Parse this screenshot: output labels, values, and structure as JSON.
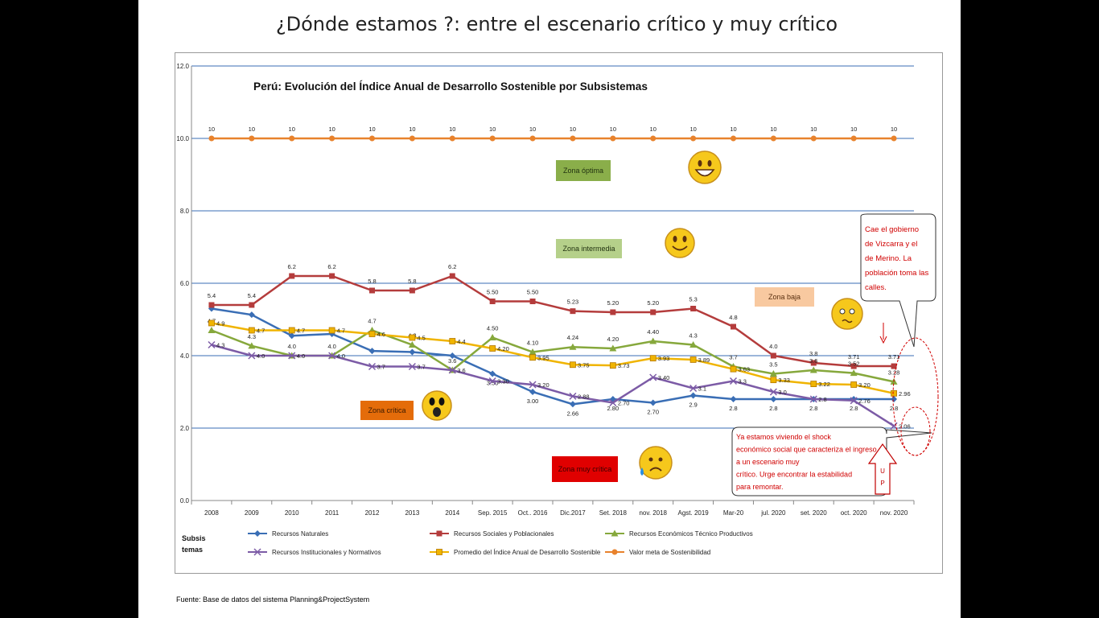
{
  "slide": {
    "title": "¿Dónde estamos ?: entre el escenario crítico y muy crítico",
    "source": "Fuente: Base de datos del sistema Planning&ProjectSystem"
  },
  "chart_data": {
    "type": "line",
    "title": "Perú: Evolución del  Índice Anual de Desarrollo Sostenible por Subsistemas",
    "ylim": [
      0,
      12
    ],
    "yticks": [
      "0.0",
      "2.0",
      "4.0",
      "6.0",
      "8.0",
      "10.0",
      "12.0"
    ],
    "grid": true,
    "legend_position": "bottom",
    "legend_label": "Subsis temas",
    "categories": [
      "2008",
      "2009",
      "2010",
      "2011",
      "2012",
      "2013",
      "2014",
      "Sep. 2015",
      "Oct.. 2016",
      "Dic.2017",
      "Set. 2018",
      "nov. 2018",
      "Agst. 2019",
      "Mar-20",
      "jul. 2020",
      "set. 2020",
      "oct. 2020",
      "nov. 2020"
    ],
    "series": [
      {
        "name": "Recursos Naturales",
        "color": "#3a6eb5",
        "marker": "diamond",
        "values": [
          5.3,
          5.13,
          4.55,
          4.6,
          4.13,
          4.1,
          4.0,
          3.5,
          3.0,
          2.66,
          2.8,
          2.7,
          2.9,
          2.8,
          2.8,
          2.8,
          2.8,
          2.8
        ],
        "labels": [
          "",
          "",
          "",
          "",
          "",
          "",
          "",
          "3.50",
          "3.00",
          "2.66",
          "2.80",
          "2.70",
          "2.9",
          "2.8",
          "2.8",
          "2.8",
          "2.8",
          "2.8"
        ]
      },
      {
        "name": "Recursos Sociales y Poblacionales",
        "color": "#b43c3c",
        "marker": "square",
        "values": [
          5.4,
          5.4,
          6.2,
          6.2,
          5.8,
          5.8,
          6.2,
          5.5,
          5.5,
          5.23,
          5.2,
          5.2,
          5.3,
          4.8,
          4.0,
          3.8,
          3.71,
          3.71
        ],
        "labels": [
          "5.4",
          "5.4",
          "6.2",
          "6.2",
          "5.8",
          "5.8",
          "6.2",
          "5.50",
          "5.50",
          "5.23",
          "5.20",
          "5.20",
          "5.3",
          "4.8",
          "4.0",
          "3.8",
          "3.71",
          "3.71"
        ]
      },
      {
        "name": "Recursos Económicos Técnico Productivos",
        "color": "#86a83c",
        "marker": "triangle",
        "values": [
          4.7,
          4.27,
          4.0,
          4.0,
          4.7,
          4.3,
          3.6,
          4.5,
          4.1,
          4.24,
          4.2,
          4.4,
          4.3,
          3.7,
          3.5,
          3.6,
          3.52,
          3.28
        ],
        "labels": [
          "4.7",
          "4.3",
          "4.0",
          "4.0",
          "4.7",
          "4.3",
          "3.6",
          "4.50",
          "4.10",
          "4.24",
          "4.20",
          "4.40",
          "4.3",
          "3.7",
          "3.5",
          "3.6",
          "3.52",
          "3.28"
        ]
      },
      {
        "name": "Recursos Institucionales y Normativos",
        "color": "#7c5ba6",
        "marker": "x",
        "values": [
          4.3,
          4.0,
          4.0,
          4.0,
          3.7,
          3.7,
          3.6,
          3.3,
          3.2,
          2.88,
          2.7,
          3.4,
          3.1,
          3.3,
          3.0,
          2.8,
          2.76,
          2.06
        ],
        "labels": [
          "4.3",
          "4.0",
          "4.0",
          "4.0",
          "3.7",
          "3.7",
          "3.6",
          "3.30",
          "3.20",
          "2.88",
          "2.70",
          "3.40",
          "3.1",
          "3.3",
          "3.0",
          "2.8",
          "2.76",
          "2.06"
        ]
      },
      {
        "name": "Promedio del Índice Anual de Desarrollo Sostenible",
        "color": "#f0b400",
        "marker": "squarefill",
        "values": [
          4.9,
          4.7,
          4.7,
          4.7,
          4.6,
          4.5,
          4.4,
          4.2,
          3.95,
          3.75,
          3.73,
          3.93,
          3.89,
          3.63,
          3.33,
          3.22,
          3.2,
          2.96
        ],
        "labels": [
          "4.9",
          "4.7",
          "4.7",
          "4.7",
          "4.6",
          "4.5",
          "4.4",
          "4.20",
          "3.95",
          "3.75",
          "3.73",
          "3.93",
          "3.89",
          "3.63",
          "3.33",
          "3.22",
          "3.20",
          "2.96"
        ]
      },
      {
        "name": "Valor meta de Sostenibilidad",
        "color": "#e8822c",
        "marker": "circle",
        "values": [
          10,
          10,
          10,
          10,
          10,
          10,
          10,
          10,
          10,
          10,
          10,
          10,
          10,
          10,
          10,
          10,
          10,
          10
        ],
        "labels": [
          "10",
          "10",
          "10",
          "10",
          "10",
          "10",
          "10",
          "10",
          "10",
          "10",
          "10",
          "10",
          "10",
          "10",
          "10",
          "10",
          "10",
          "10"
        ]
      }
    ],
    "zones": [
      {
        "label": "Zona óptima",
        "bg": "#8aae4a",
        "fg": "#223311",
        "face": "happy"
      },
      {
        "label": "Zona intermedia",
        "bg": "#b5d08a",
        "fg": "#223311",
        "face": "smile"
      },
      {
        "label": "Zona baja",
        "bg": "#f8c9a0",
        "fg": "#5a3010",
        "face": "worried"
      },
      {
        "label": "Zona crítica",
        "bg": "#e46c0a",
        "fg": "#3a1a00",
        "face": "shocked"
      },
      {
        "label": "Zona muy crítica",
        "bg": "#e00000",
        "fg": "#3a0000",
        "face": "sad"
      }
    ],
    "callouts": [
      {
        "text": "Cae el gobierno de Vizcarra y el de Merino. La población toma las calles.",
        "color": "#d00000"
      },
      {
        "text": "Ya estamos viviendo el shock económico social que caracteriza el ingreso a un escenario muy crítico. Urge encontrar la estabilidad para remontar.",
        "color": "#d00000"
      }
    ],
    "up_arrow_label": [
      "U",
      "P"
    ]
  }
}
